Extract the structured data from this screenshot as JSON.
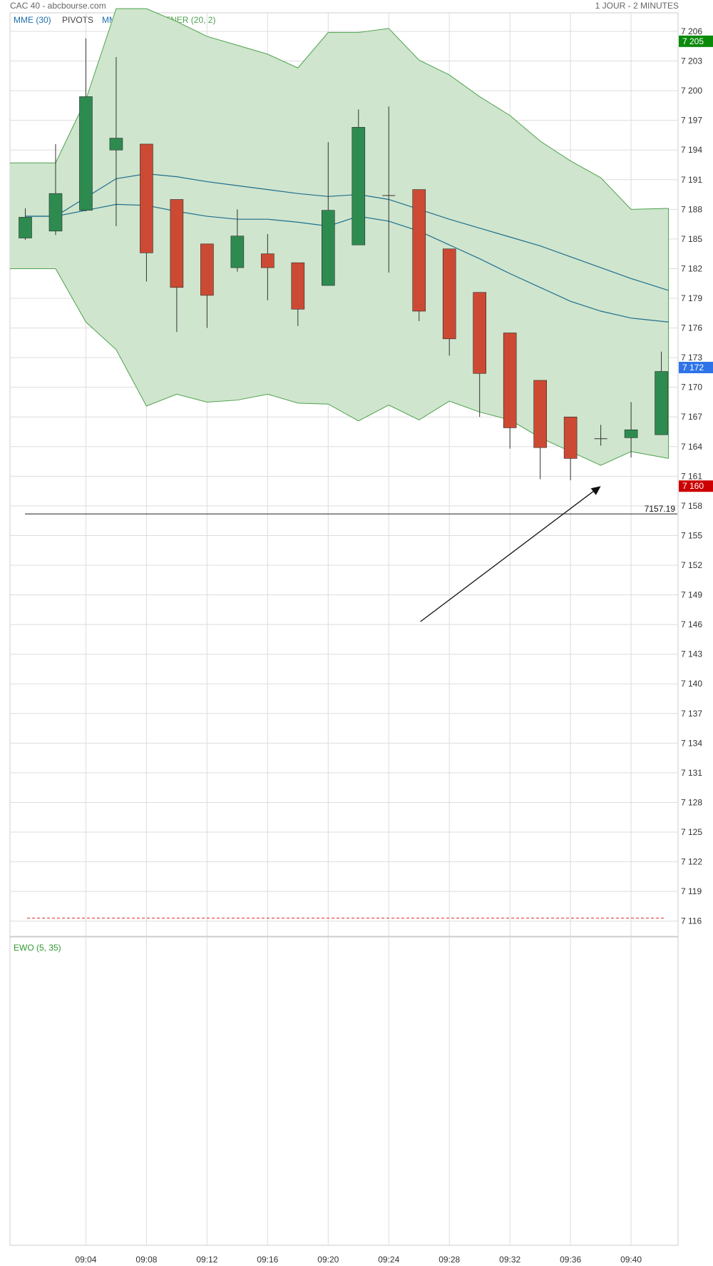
{
  "header": {
    "source": "CAC 40 - abcbourse.com",
    "period": "1 JOUR - 2 MINUTES"
  },
  "legend": {
    "main": [
      {
        "label": "MME (30)",
        "color": "#1f6fb0"
      },
      {
        "label": "PIVOTS",
        "color": "#444444"
      },
      {
        "label": "MMT (20)",
        "color": "#1f6fb0"
      },
      {
        "label": "KELTNER (20, 2)",
        "color": "#4ea24e"
      }
    ],
    "sub": {
      "label": "EWO (5, 35)",
      "color": "#2e9a2e"
    }
  },
  "colors": {
    "up": "#2e8b50",
    "down": "#cc4a33",
    "keltner_fill": "#cfe5cd",
    "keltner_line": "#4ea24e",
    "ma_line": "#1f6f8f",
    "grid": "#dddddd"
  },
  "chart_data": {
    "type": "candlestick",
    "title": "CAC 40",
    "x_ticks": [
      "09:04",
      "09:08",
      "09:12",
      "09:16",
      "09:20",
      "09:24",
      "09:28",
      "09:32",
      "09:36",
      "09:40"
    ],
    "y_ticks": [
      7206,
      7203,
      7200,
      7197,
      7194,
      7191,
      7188,
      7185,
      7182,
      7179,
      7176,
      7173,
      7170,
      7167,
      7164,
      7161,
      7158,
      7155,
      7152,
      7149,
      7146,
      7143,
      7140,
      7137,
      7134,
      7131,
      7128,
      7125,
      7122,
      7119,
      7116
    ],
    "y_tick_labels": [
      "7 206",
      "7 203",
      "7 200",
      "7 197",
      "7 194",
      "7 191",
      "7 188",
      "7 185",
      "7 182",
      "7 179",
      "7 176",
      "7 173",
      "7 170",
      "7 167",
      "7 164",
      "7 161",
      "7 158",
      "7 155",
      "7 152",
      "7 149",
      "7 146",
      "7 143",
      "7 140",
      "7 137",
      "7 134",
      "7 131",
      "7 128",
      "7 125",
      "7 122",
      "7 119",
      "7 116"
    ],
    "ylim": [
      7114.5,
      7208.3
    ],
    "candles": [
      {
        "time": "09:00",
        "open": 7185.1,
        "high": 7188.1,
        "low": 7184.9,
        "close": 7187.2
      },
      {
        "time": "09:02",
        "open": 7185.8,
        "high": 7194.6,
        "low": 7185.4,
        "close": 7189.6
      },
      {
        "time": "09:04",
        "open": 7187.9,
        "high": 7205.3,
        "low": 7187.8,
        "close": 7199.4
      },
      {
        "time": "09:06",
        "open": 7194.0,
        "high": 7203.4,
        "low": 7186.3,
        "close": 7195.2
      },
      {
        "time": "09:08",
        "open": 7194.6,
        "high": 7194.6,
        "low": 7180.7,
        "close": 7183.6
      },
      {
        "time": "09:10",
        "open": 7189.0,
        "high": 7189.0,
        "low": 7175.6,
        "close": 7180.1
      },
      {
        "time": "09:12",
        "open": 7184.5,
        "high": 7184.5,
        "low": 7176.0,
        "close": 7179.3
      },
      {
        "time": "09:14",
        "open": 7182.1,
        "high": 7188.0,
        "low": 7181.7,
        "close": 7185.3
      },
      {
        "time": "09:16",
        "open": 7183.5,
        "high": 7185.5,
        "low": 7178.8,
        "close": 7182.1
      },
      {
        "time": "09:18",
        "open": 7182.6,
        "high": 7182.6,
        "low": 7176.2,
        "close": 7177.9
      },
      {
        "time": "09:20",
        "open": 7180.3,
        "high": 7194.8,
        "low": 7180.3,
        "close": 7187.9
      },
      {
        "time": "09:22",
        "open": 7184.4,
        "high": 7198.1,
        "low": 7184.4,
        "close": 7196.3
      },
      {
        "time": "09:24",
        "open": 7189.4,
        "high": 7198.4,
        "low": 7181.6,
        "close": 7189.4
      },
      {
        "time": "09:26",
        "open": 7190.0,
        "high": 7190.0,
        "low": 7176.7,
        "close": 7177.7
      },
      {
        "time": "09:28",
        "open": 7184.0,
        "high": 7184.0,
        "low": 7173.2,
        "close": 7174.9
      },
      {
        "time": "09:30",
        "open": 7179.6,
        "high": 7179.6,
        "low": 7167.0,
        "close": 7171.4
      },
      {
        "time": "09:32",
        "open": 7175.5,
        "high": 7175.5,
        "low": 7163.8,
        "close": 7165.9
      },
      {
        "time": "09:34",
        "open": 7170.7,
        "high": 7170.7,
        "low": 7160.7,
        "close": 7163.9
      },
      {
        "time": "09:36",
        "open": 7167.0,
        "high": 7167.0,
        "low": 7160.6,
        "close": 7162.8
      },
      {
        "time": "09:38",
        "open": 7164.8,
        "high": 7166.2,
        "low": 7164.1,
        "close": 7164.8
      },
      {
        "time": "09:40",
        "open": 7164.9,
        "high": 7168.5,
        "low": 7162.9,
        "close": 7165.7
      },
      {
        "time": "09:42",
        "open": 7165.2,
        "high": 7173.6,
        "low": 7165.2,
        "close": 7171.6
      }
    ],
    "keltner_upper": [
      7192.7,
      7192.7,
      7199.1,
      7208.3,
      7208.3,
      7207.0,
      7205.5,
      7204.6,
      7203.7,
      7202.3,
      7205.9,
      7205.9,
      7206.3,
      7203.1,
      7201.6,
      7199.4,
      7197.5,
      7194.9,
      7192.9,
      7191.2,
      7188.0,
      7188.1
    ],
    "keltner_lower": [
      7182.0,
      7182.0,
      7176.6,
      7173.8,
      7168.1,
      7169.3,
      7168.5,
      7168.7,
      7169.3,
      7168.4,
      7168.3,
      7166.6,
      7168.2,
      7166.7,
      7168.6,
      7167.5,
      7166.7,
      7164.9,
      7163.5,
      7162.1,
      7163.5,
      7162.8
    ],
    "ma_upper": [
      7187.3,
      7187.3,
      7189.2,
      7191.1,
      7191.6,
      7191.3,
      7190.8,
      7190.4,
      7190.0,
      7189.6,
      7189.3,
      7189.5,
      7189.0,
      7188.0,
      7187.0,
      7186.1,
      7185.2,
      7184.3,
      7183.2,
      7182.1,
      7181.0,
      7179.8
    ],
    "ma_lower": [
      7187.3,
      7187.3,
      7187.9,
      7188.5,
      7188.4,
      7187.8,
      7187.3,
      7187.0,
      7187.0,
      7186.7,
      7186.3,
      7187.3,
      7186.8,
      7185.8,
      7184.4,
      7183.0,
      7181.5,
      7180.1,
      7178.7,
      7177.7,
      7177.0,
      7176.6
    ],
    "price_badges": [
      {
        "value": 7205,
        "label": "7 205",
        "color": "#0a8a0a"
      },
      {
        "value": 7172,
        "label": "7 172",
        "color": "#2e74e8"
      },
      {
        "value": 7160,
        "label": "7 160",
        "color": "#cc0000"
      }
    ],
    "support_line": {
      "value": 7157.19,
      "label": "7157.19"
    },
    "dashed_line": {
      "value": 7116.3
    },
    "arrow": {
      "from": {
        "time": "09:26",
        "price": 7146.3
      },
      "to": {
        "time": "09:38",
        "price": 7160.0
      }
    }
  }
}
